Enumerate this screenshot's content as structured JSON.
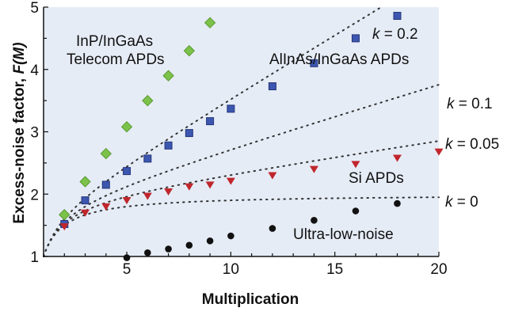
{
  "chart_data": {
    "type": "scatter",
    "xlabel": "Multiplication",
    "ylabel_main": "Excess-noise factor, ",
    "ylabel_italic": "F(M)",
    "xlim": [
      1,
      20
    ],
    "ylim": [
      1,
      5
    ],
    "x_ticks": [
      5,
      10,
      15,
      20
    ],
    "y_ticks": [
      1,
      2,
      3,
      4,
      5
    ],
    "grid": false,
    "background": "#e6ecf6",
    "series": [
      {
        "name": "InP/InGaAs Telecom APDs",
        "marker": "diamond",
        "color": "#7cc24a",
        "points": [
          [
            2,
            1.67
          ],
          [
            3,
            2.2
          ],
          [
            4,
            2.65
          ],
          [
            5,
            3.08
          ],
          [
            6,
            3.5
          ],
          [
            7,
            3.9
          ],
          [
            8,
            4.3
          ],
          [
            9,
            4.75
          ]
        ]
      },
      {
        "name": "AlInAs/InGaAs APDs",
        "marker": "square",
        "color": "#3d57b0",
        "points": [
          [
            2,
            1.52
          ],
          [
            3,
            1.9
          ],
          [
            4,
            2.15
          ],
          [
            5,
            2.37
          ],
          [
            6,
            2.57
          ],
          [
            7,
            2.78
          ],
          [
            8,
            2.98
          ],
          [
            9,
            3.17
          ],
          [
            10,
            3.37
          ],
          [
            12,
            3.73
          ],
          [
            14,
            4.1
          ],
          [
            16,
            4.5
          ],
          [
            18,
            4.86
          ]
        ]
      },
      {
        "name": "Si APDs",
        "marker": "triangle-down",
        "color": "#c0262c",
        "points": [
          [
            2,
            1.48
          ],
          [
            3,
            1.7
          ],
          [
            4,
            1.8
          ],
          [
            5,
            1.9
          ],
          [
            6,
            1.97
          ],
          [
            7,
            2.04
          ],
          [
            8,
            2.12
          ],
          [
            9,
            2.15
          ],
          [
            10,
            2.21
          ],
          [
            12,
            2.3
          ],
          [
            14,
            2.4
          ],
          [
            16,
            2.48
          ],
          [
            18,
            2.58
          ],
          [
            20,
            2.68
          ]
        ]
      },
      {
        "name": "Ultra-low-noise",
        "marker": "circle",
        "color": "#111111",
        "points": [
          [
            5,
            0.98
          ],
          [
            6,
            1.06
          ],
          [
            7,
            1.12
          ],
          [
            8,
            1.18
          ],
          [
            9,
            1.25
          ],
          [
            10,
            1.33
          ],
          [
            12,
            1.45
          ],
          [
            14,
            1.58
          ],
          [
            16,
            1.73
          ],
          [
            18,
            1.85
          ]
        ]
      }
    ],
    "reference_curves": [
      {
        "k": 0.2,
        "label_k": "k",
        "label_val": " = 0.2"
      },
      {
        "k": 0.1,
        "label_k": "k",
        "label_val": " = 0.1"
      },
      {
        "k": 0.05,
        "label_k": "k",
        "label_val": " = 0.05"
      },
      {
        "k": 0,
        "label_k": "k",
        "label_val": " = 0"
      }
    ],
    "annotations": {
      "inp_line1": "InP/InGaAs",
      "inp_line2": "Telecom APDs",
      "alinas": "AlInAs/InGaAs APDs",
      "si": "Si APDs",
      "ultra": "Ultra-low-noise"
    }
  }
}
